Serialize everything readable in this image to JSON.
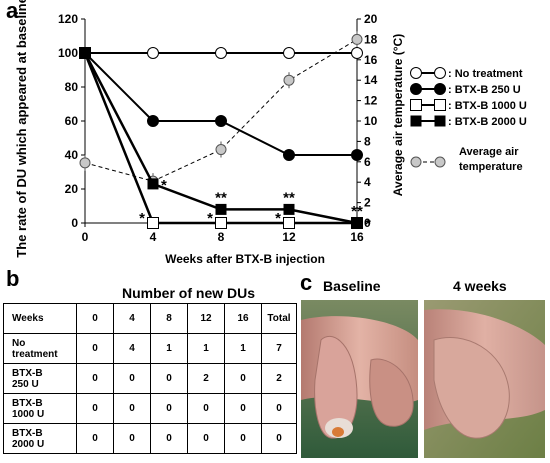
{
  "panel_a": {
    "letter": "a",
    "chart_data": {
      "type": "line",
      "xlabel": "Weeks after BTX-B injection",
      "ylabel_left": "The rate of DU which appeared at baseline (%)",
      "ylabel_right": "Average air temperature (°C)",
      "x": [
        0,
        4,
        8,
        12,
        16
      ],
      "x_ticks": [
        "0",
        "4",
        "8",
        "12",
        "16"
      ],
      "ylim_left": [
        0,
        120
      ],
      "y_ticks_left": [
        "0",
        "20",
        "40",
        "60",
        "80",
        "100",
        "120"
      ],
      "ylim_right": [
        0,
        20
      ],
      "y_ticks_right": [
        "0",
        "2",
        "4",
        "6",
        "8",
        "10",
        "12",
        "14",
        "16",
        "18",
        "20"
      ],
      "series": [
        {
          "name": ": No treatment",
          "axis": "left",
          "marker": "open-circle",
          "line": "solid",
          "values": [
            100,
            100,
            100,
            100,
            100
          ]
        },
        {
          "name": ": BTX-B 250 U",
          "axis": "left",
          "marker": "filled-circle",
          "line": "solid",
          "values": [
            100,
            60,
            60,
            40,
            40
          ]
        },
        {
          "name": ": BTX-B 1000 U",
          "axis": "left",
          "marker": "open-square",
          "line": "solid",
          "values": [
            100,
            0,
            0,
            0,
            0
          ]
        },
        {
          "name": ": BTX-B 2000 U",
          "axis": "left",
          "marker": "filled-square",
          "line": "solid",
          "values": [
            100,
            23,
            8,
            8,
            0
          ]
        },
        {
          "name": "Average air temperature",
          "axis": "right",
          "marker": "gray-circle",
          "line": "dashed",
          "values": [
            5.9,
            4.1,
            7.2,
            14,
            18
          ]
        }
      ],
      "annotations": [
        {
          "text": "*",
          "x": 4,
          "y": 23,
          "place": "right",
          "axis": "left"
        },
        {
          "text": "*",
          "x": 4,
          "y": 0,
          "place": "left",
          "axis": "left"
        },
        {
          "text": "**",
          "x": 8,
          "y": 8,
          "place": "above",
          "axis": "left"
        },
        {
          "text": "*",
          "x": 8,
          "y": 0,
          "place": "left",
          "axis": "left"
        },
        {
          "text": "**",
          "x": 12,
          "y": 8,
          "place": "above",
          "axis": "left"
        },
        {
          "text": "*",
          "x": 12,
          "y": 0,
          "place": "left",
          "axis": "left"
        },
        {
          "text": "**",
          "x": 16,
          "y": 0,
          "place": "above",
          "axis": "left"
        },
        {
          "text": "*",
          "x": 16,
          "y": 0,
          "place": "right",
          "axis": "left"
        }
      ]
    }
  },
  "panel_b": {
    "letter": "b",
    "title": "Number of new DUs",
    "columns": [
      "Weeks",
      "0",
      "4",
      "8",
      "12",
      "16",
      "Total"
    ],
    "rows": [
      {
        "label": [
          "No",
          "treatment"
        ],
        "values": [
          "0",
          "4",
          "1",
          "1",
          "1",
          "7"
        ]
      },
      {
        "label": [
          "BTX-B",
          "250 U"
        ],
        "values": [
          "0",
          "0",
          "0",
          "2",
          "0",
          "2"
        ]
      },
      {
        "label": [
          "BTX-B",
          "1000 U"
        ],
        "values": [
          "0",
          "0",
          "0",
          "0",
          "0",
          "0"
        ]
      },
      {
        "label": [
          "BTX-B",
          "2000 U"
        ],
        "values": [
          "0",
          "0",
          "0",
          "0",
          "0",
          "0"
        ]
      }
    ]
  },
  "panel_c": {
    "letter": "c",
    "labels": [
      "Baseline",
      "4 weeks"
    ]
  },
  "colors": {
    "axis": "#000000",
    "temperature_marker": "#c8c8c8",
    "photo_bg_left": "#4a6d47",
    "photo_bg_right": "#7c8a58",
    "skin": "#d9a79a",
    "ulcer": "#d87a36"
  }
}
